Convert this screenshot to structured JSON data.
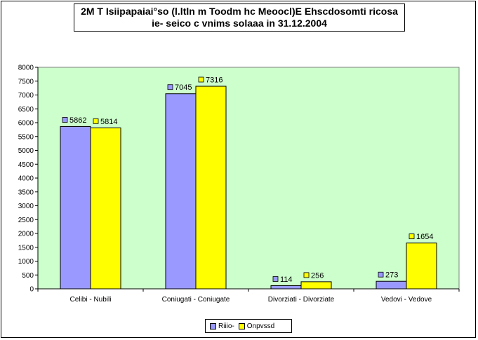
{
  "chart_data": {
    "type": "bar",
    "title_lines": [
      "2M T Isiipapaiai°so (l.ltln m Toodm hc Meoocl)E Ehscdosomti ricosa",
      "ie- seico c vnims solaaa  in  31.12.2004"
    ],
    "categories": [
      "Celibi - Nubili",
      "Coniugati - Coniugate",
      "Divorziati - Divorziate",
      "Vedovi - Vedove"
    ],
    "series": [
      {
        "name": "Riiio-",
        "values": [
          5862,
          7045,
          114,
          273
        ]
      },
      {
        "name": "Onpvssd",
        "values": [
          5814,
          7316,
          256,
          1654
        ]
      }
    ],
    "ylim": [
      0,
      8000
    ],
    "yticks": [
      0,
      500,
      1000,
      1500,
      2000,
      2500,
      3000,
      3500,
      4000,
      4500,
      5000,
      5500,
      6000,
      6500,
      7000,
      7500,
      8000
    ],
    "grid": false,
    "legend_position": "bottom",
    "colors": {
      "plot_bg": "#ccffcc",
      "series": [
        "#9999ff",
        "#ffff00"
      ]
    }
  }
}
